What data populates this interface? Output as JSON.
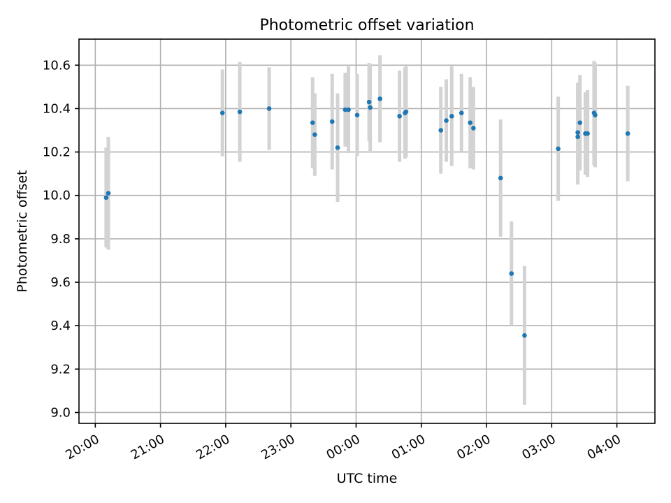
{
  "chart_data": {
    "type": "scatter",
    "title": "Photometric offset variation",
    "xlabel": "UTC time",
    "ylabel": "Photometric offset",
    "x_axis": "time",
    "xlim": [
      "19:45",
      "04:35"
    ],
    "ylim": [
      8.95,
      10.72
    ],
    "x_ticks": [
      "20:00",
      "21:00",
      "22:00",
      "23:00",
      "00:00",
      "01:00",
      "02:00",
      "03:00",
      "04:00"
    ],
    "y_ticks": [
      "9.0",
      "9.2",
      "9.4",
      "9.6",
      "9.8",
      "10.0",
      "10.2",
      "10.4",
      "10.6"
    ],
    "grid": true,
    "colors": {
      "points": "#1f77b4",
      "error_bars": "#d3d3d3"
    },
    "points": [
      {
        "x": "20:10",
        "y": 9.99,
        "yerr": 0.23
      },
      {
        "x": "20:12",
        "y": 10.01,
        "yerr": 0.26
      },
      {
        "x": "21:57",
        "y": 10.38,
        "yerr": 0.2
      },
      {
        "x": "22:13",
        "y": 10.385,
        "yerr": 0.23
      },
      {
        "x": "22:40",
        "y": 10.4,
        "yerr": 0.19
      },
      {
        "x": "23:20",
        "y": 10.335,
        "yerr": 0.21
      },
      {
        "x": "23:22",
        "y": 10.28,
        "yerr": 0.19
      },
      {
        "x": "23:38",
        "y": 10.34,
        "yerr": 0.22
      },
      {
        "x": "23:43",
        "y": 10.22,
        "yerr": 0.25
      },
      {
        "x": "23:50",
        "y": 10.395,
        "yerr": 0.17
      },
      {
        "x": "23:53",
        "y": 10.395,
        "yerr": 0.2
      },
      {
        "x": "00:01",
        "y": 10.37,
        "yerr": 0.19
      },
      {
        "x": "00:12",
        "y": 10.43,
        "yerr": 0.18
      },
      {
        "x": "00:13",
        "y": 10.405,
        "yerr": 0.2
      },
      {
        "x": "00:22",
        "y": 10.445,
        "yerr": 0.2
      },
      {
        "x": "00:40",
        "y": 10.365,
        "yerr": 0.21
      },
      {
        "x": "00:45",
        "y": 10.38,
        "yerr": 0.21
      },
      {
        "x": "00:46",
        "y": 10.385,
        "yerr": 0.21
      },
      {
        "x": "01:18",
        "y": 10.3,
        "yerr": 0.2
      },
      {
        "x": "01:23",
        "y": 10.345,
        "yerr": 0.19
      },
      {
        "x": "01:28",
        "y": 10.365,
        "yerr": 0.23
      },
      {
        "x": "01:37",
        "y": 10.38,
        "yerr": 0.18
      },
      {
        "x": "01:45",
        "y": 10.335,
        "yerr": 0.21
      },
      {
        "x": "01:48",
        "y": 10.31,
        "yerr": 0.19
      },
      {
        "x": "02:13",
        "y": 10.08,
        "yerr": 0.27
      },
      {
        "x": "02:23",
        "y": 9.64,
        "yerr": 0.24
      },
      {
        "x": "02:35",
        "y": 9.355,
        "yerr": 0.32
      },
      {
        "x": "03:06",
        "y": 10.215,
        "yerr": 0.24
      },
      {
        "x": "03:24",
        "y": 10.27,
        "yerr": 0.22
      },
      {
        "x": "03:24",
        "y": 10.29,
        "yerr": 0.23
      },
      {
        "x": "03:26",
        "y": 10.335,
        "yerr": 0.22
      },
      {
        "x": "03:31",
        "y": 10.285,
        "yerr": 0.19
      },
      {
        "x": "03:33",
        "y": 10.285,
        "yerr": 0.2
      },
      {
        "x": "03:39",
        "y": 10.38,
        "yerr": 0.24
      },
      {
        "x": "03:40",
        "y": 10.37,
        "yerr": 0.24
      },
      {
        "x": "04:10",
        "y": 10.285,
        "yerr": 0.22
      }
    ]
  }
}
